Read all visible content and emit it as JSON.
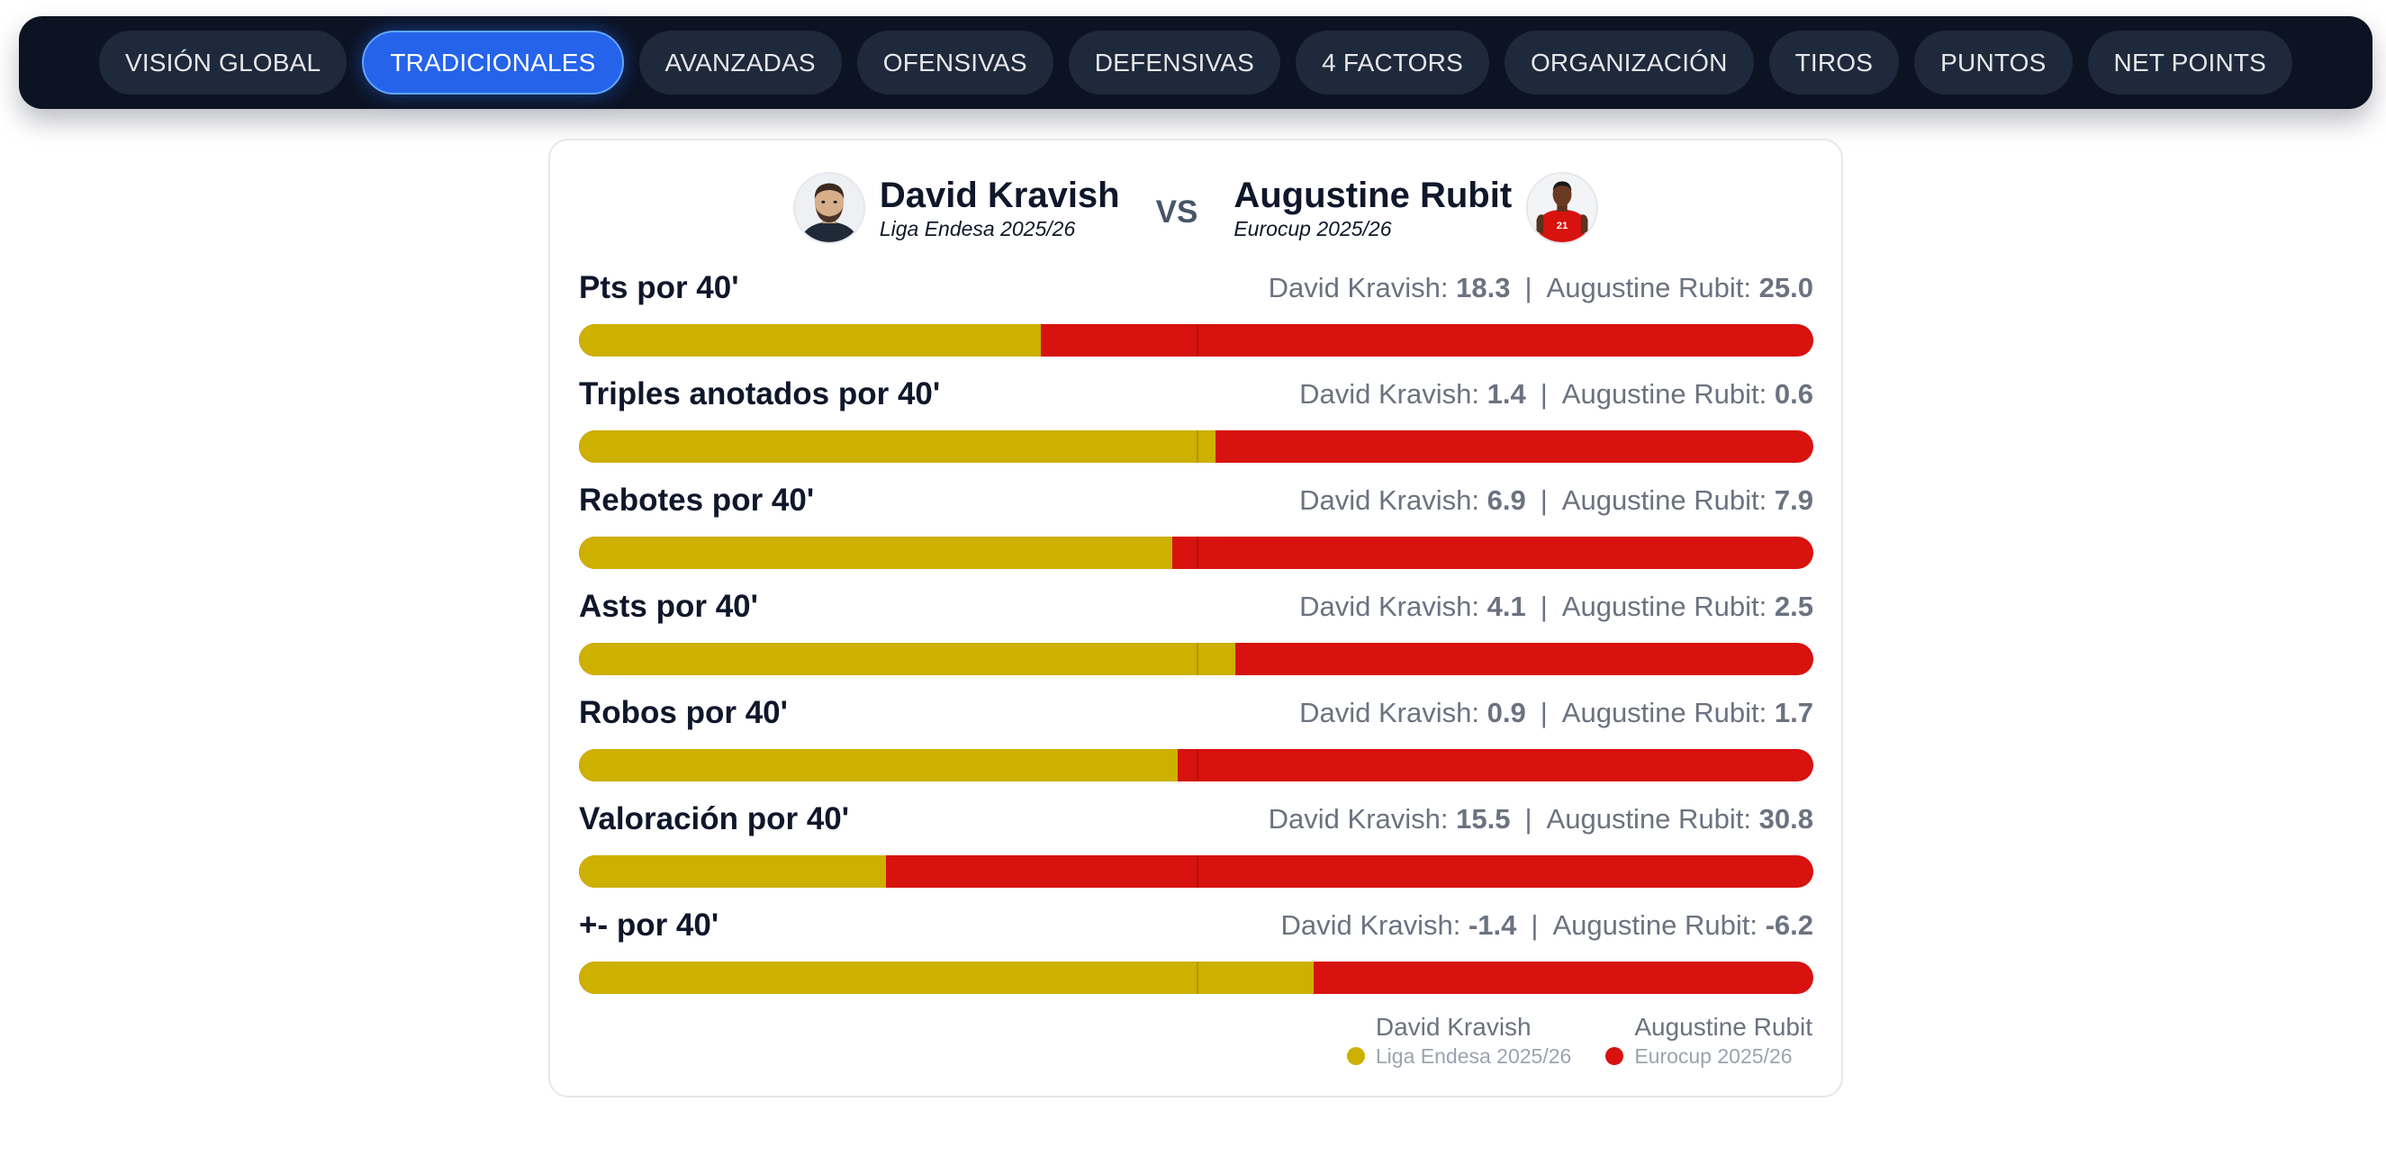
{
  "tabs": [
    {
      "label": "VISIÓN GLOBAL",
      "active": false
    },
    {
      "label": "TRADICIONALES",
      "active": true
    },
    {
      "label": "AVANZADAS",
      "active": false
    },
    {
      "label": "OFENSIVAS",
      "active": false
    },
    {
      "label": "DEFENSIVAS",
      "active": false
    },
    {
      "label": "4 FACTORS",
      "active": false
    },
    {
      "label": "ORGANIZACIÓN",
      "active": false
    },
    {
      "label": "TIROS",
      "active": false
    },
    {
      "label": "PUNTOS",
      "active": false
    },
    {
      "label": "NET POINTS",
      "active": false
    }
  ],
  "comparison": {
    "player_a": {
      "name": "David Kravish",
      "competition": "Liga Endesa 2025/26",
      "color": "#cdb000"
    },
    "vs": "VS",
    "player_b": {
      "name": "Augustine Rubit",
      "competition": "Eurocup 2025/26",
      "color": "#d7120f",
      "jersey": "21"
    }
  },
  "stats": [
    {
      "label": "Pts por 40'",
      "a_value": "18.3",
      "b_value": "25.0",
      "a_share": 0.374
    },
    {
      "label": "Triples anotados por 40'",
      "a_value": "1.4",
      "b_value": "0.6",
      "a_share": 0.516
    },
    {
      "label": "Rebotes por 40'",
      "a_value": "6.9",
      "b_value": "7.9",
      "a_share": 0.481
    },
    {
      "label": "Asts por 40'",
      "a_value": "4.1",
      "b_value": "2.5",
      "a_share": 0.532
    },
    {
      "label": "Robos por 40'",
      "a_value": "0.9",
      "b_value": "1.7",
      "a_share": 0.485
    },
    {
      "label": "Valoración por 40'",
      "a_value": "15.5",
      "b_value": "30.8",
      "a_share": 0.249
    },
    {
      "label": "+- por 40'",
      "a_value": "-1.4",
      "b_value": "-6.2",
      "a_share": 0.595
    }
  ],
  "legend": {
    "a_name": "David Kravish",
    "a_competition": "Liga Endesa 2025/26",
    "b_name": "Augustine Rubit",
    "b_competition": "Eurocup 2025/26"
  }
}
